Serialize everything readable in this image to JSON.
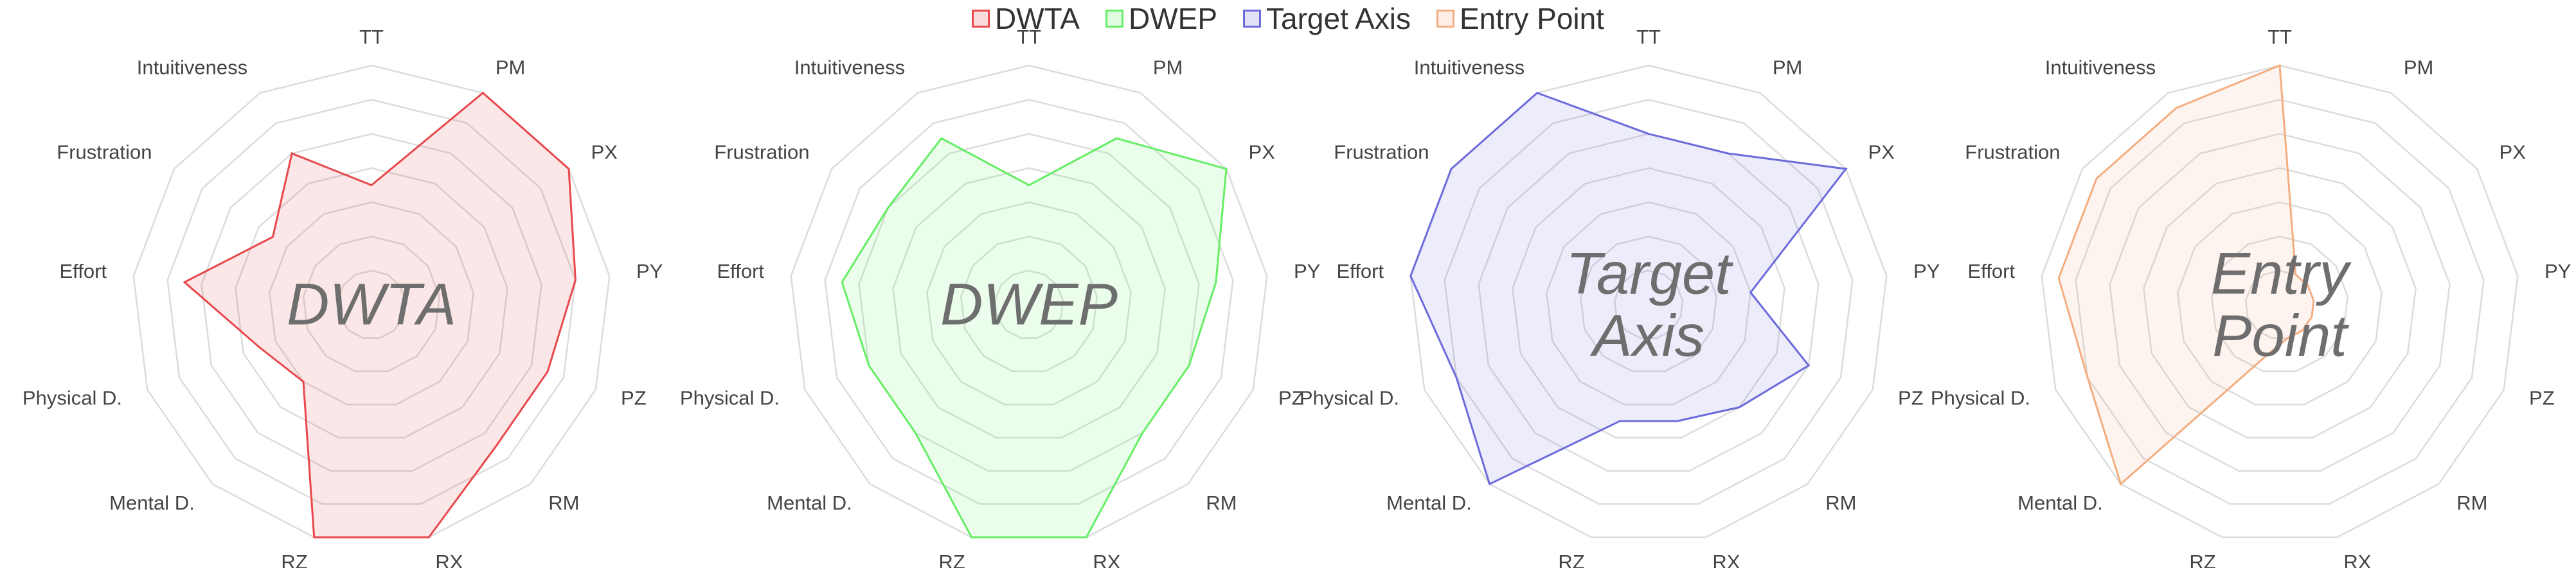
{
  "chart_data": [
    {
      "type": "radar",
      "categories": [
        "TT",
        "PM",
        "PX",
        "PY",
        "PZ",
        "RM",
        "RX",
        "RZ",
        "Mental D.",
        "Physical D.",
        "Effort",
        "Frustration",
        "Intuitiveness"
      ],
      "rlim": [
        0,
        7
      ],
      "rticks": [
        1,
        2,
        3,
        4,
        5,
        6,
        7
      ],
      "series": [
        {
          "name": "DWTA",
          "color": "#e8484c",
          "values": [
            3.5,
            7,
            7,
            6,
            5.5,
            5.5,
            7,
            7,
            3,
            3.5,
            5.5,
            3.5,
            5
          ]
        }
      ]
    },
    {
      "type": "radar",
      "categories": [
        "TT",
        "PM",
        "PX",
        "PY",
        "PZ",
        "RM",
        "RX",
        "RZ",
        "Mental D.",
        "Physical D.",
        "Effort",
        "Frustration",
        "Intuitiveness"
      ],
      "rlim": [
        0,
        7
      ],
      "rticks": [
        1,
        2,
        3,
        4,
        5,
        6,
        7
      ],
      "series": [
        {
          "name": "DWEP",
          "color": "#66ee66",
          "values": [
            3.5,
            5.5,
            7,
            5.5,
            5,
            5,
            7,
            7,
            5,
            5,
            5.5,
            5,
            5.5
          ]
        }
      ]
    },
    {
      "type": "radar",
      "categories": [
        "TT",
        "PM",
        "PX",
        "PY",
        "PZ",
        "RM",
        "RX",
        "RZ",
        "Mental D.",
        "Physical D.",
        "Effort",
        "Frustration",
        "Intuitiveness"
      ],
      "rlim": [
        0,
        7
      ],
      "rticks": [
        1,
        2,
        3,
        4,
        5,
        6,
        7
      ],
      "series": [
        {
          "name": "Target Axis",
          "color": "#6b6bdc",
          "values": [
            5,
            5,
            7,
            3,
            5,
            4,
            3.5,
            3.5,
            7,
            6,
            7,
            7,
            7
          ]
        }
      ]
    },
    {
      "type": "radar",
      "categories": [
        "TT",
        "PM",
        "PX",
        "PY",
        "PZ",
        "RM",
        "RX",
        "RZ",
        "Mental D.",
        "Physical D.",
        "Effort",
        "Frustration",
        "Intuitiveness"
      ],
      "rlim": [
        0,
        7
      ],
      "rticks": [
        1,
        2,
        3,
        4,
        5,
        6,
        7
      ],
      "series": [
        {
          "name": "Entry Point",
          "color": "#f3ad80",
          "values": [
            7,
            1,
            1,
            1,
            1,
            1,
            1,
            1.5,
            7,
            6,
            6.5,
            6.5,
            6.5
          ]
        }
      ]
    }
  ]
}
